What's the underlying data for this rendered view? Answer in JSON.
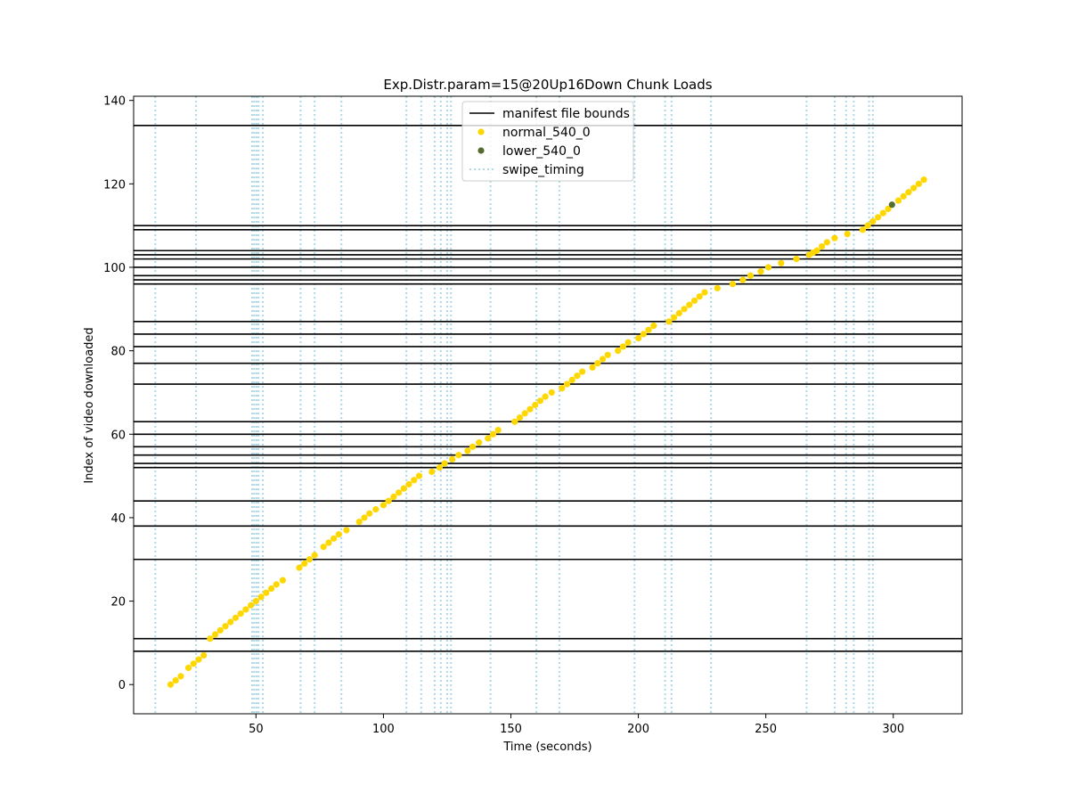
{
  "chart_data": {
    "type": "scatter",
    "title": "Exp.Distr.param=15@20Up16Down Chunk Loads",
    "xlabel": "Time (seconds)",
    "ylabel": "Index of video downloaded",
    "xlim": [
      2,
      327
    ],
    "ylim": [
      -7,
      141
    ],
    "x_ticks": [
      50,
      100,
      150,
      200,
      250,
      300
    ],
    "y_ticks": [
      0,
      20,
      40,
      60,
      80,
      100,
      120,
      140
    ],
    "grid": false,
    "legend_position": "upper center",
    "legend": [
      {
        "label": "manifest file bounds",
        "style": "line",
        "color": "#000000"
      },
      {
        "label": "normal_540_0",
        "style": "dot",
        "color": "#ffd700"
      },
      {
        "label": "lower_540_0",
        "style": "dot",
        "color": "#556b2f"
      },
      {
        "label": "swipe_timing",
        "style": "dotted-line",
        "color": "#add8e6"
      }
    ],
    "manifest_file_bounds": [
      8,
      11,
      30,
      38,
      44,
      52,
      53,
      55,
      57,
      60,
      63,
      72,
      77,
      81,
      84,
      87,
      96,
      97,
      98,
      100,
      102,
      103,
      104,
      109,
      110,
      134
    ],
    "swipe_timing": [
      10.5,
      26.5,
      48.5,
      49.3,
      50.2,
      51,
      52.7,
      67.5,
      73,
      83.5,
      109,
      114.8,
      120.1,
      122.5,
      125,
      126.5,
      142,
      160,
      169,
      198.5,
      210.5,
      213,
      228.5,
      266,
      277,
      281.5,
      284.5,
      290.5,
      292
    ],
    "series": [
      {
        "name": "normal_540_0",
        "color": "#ffd700",
        "points": [
          [
            16.5,
            0
          ],
          [
            18.5,
            1
          ],
          [
            20.5,
            2
          ],
          [
            23.5,
            4
          ],
          [
            25.5,
            5
          ],
          [
            27.5,
            6
          ],
          [
            29.5,
            7
          ],
          [
            32,
            11
          ],
          [
            34,
            12
          ],
          [
            36,
            13
          ],
          [
            38,
            14
          ],
          [
            40,
            15
          ],
          [
            42,
            16
          ],
          [
            44,
            17
          ],
          [
            46,
            18
          ],
          [
            48,
            19
          ],
          [
            50,
            20
          ],
          [
            52,
            21
          ],
          [
            54,
            22
          ],
          [
            56,
            23
          ],
          [
            58,
            24
          ],
          [
            60.5,
            25
          ],
          [
            67,
            28
          ],
          [
            69,
            29
          ],
          [
            71,
            30
          ],
          [
            73,
            31
          ],
          [
            76.5,
            33
          ],
          [
            78.5,
            34
          ],
          [
            80.5,
            35
          ],
          [
            82.5,
            36
          ],
          [
            85.5,
            37
          ],
          [
            90.5,
            39
          ],
          [
            92.5,
            40
          ],
          [
            94.5,
            41
          ],
          [
            97,
            42
          ],
          [
            100,
            43
          ],
          [
            102,
            44
          ],
          [
            104,
            45
          ],
          [
            106,
            46
          ],
          [
            108,
            47
          ],
          [
            110,
            48
          ],
          [
            112,
            49
          ],
          [
            114,
            50
          ],
          [
            119,
            51
          ],
          [
            122,
            52
          ],
          [
            124,
            53
          ],
          [
            127,
            54
          ],
          [
            129.5,
            55
          ],
          [
            133,
            56
          ],
          [
            135,
            57
          ],
          [
            137.5,
            58
          ],
          [
            141,
            59
          ],
          [
            143,
            60
          ],
          [
            145,
            61
          ],
          [
            151.5,
            63
          ],
          [
            153.5,
            64
          ],
          [
            155.5,
            65
          ],
          [
            157.5,
            66
          ],
          [
            159.5,
            67
          ],
          [
            161.5,
            68
          ],
          [
            163.5,
            69
          ],
          [
            166,
            70
          ],
          [
            170,
            71
          ],
          [
            172,
            72
          ],
          [
            174,
            73
          ],
          [
            176,
            74
          ],
          [
            178,
            75
          ],
          [
            182,
            76
          ],
          [
            184,
            77
          ],
          [
            186,
            78
          ],
          [
            188,
            79
          ],
          [
            192,
            80
          ],
          [
            194,
            81
          ],
          [
            196,
            82
          ],
          [
            200,
            83
          ],
          [
            202,
            84
          ],
          [
            204,
            85
          ],
          [
            206,
            86
          ],
          [
            212,
            87
          ],
          [
            214,
            88
          ],
          [
            216,
            89
          ],
          [
            218,
            90
          ],
          [
            220,
            91
          ],
          [
            222,
            92
          ],
          [
            224,
            93
          ],
          [
            226,
            94
          ],
          [
            231,
            95
          ],
          [
            237,
            96
          ],
          [
            241,
            97
          ],
          [
            244,
            98
          ],
          [
            248,
            99
          ],
          [
            251,
            100
          ],
          [
            256,
            101
          ],
          [
            262,
            102
          ],
          [
            267,
            103
          ],
          [
            268.5,
            103.5
          ],
          [
            270,
            104
          ],
          [
            272,
            105
          ],
          [
            274,
            106
          ],
          [
            277,
            107
          ],
          [
            282,
            108
          ],
          [
            288,
            109
          ],
          [
            290,
            110
          ],
          [
            292,
            111
          ],
          [
            294,
            112
          ],
          [
            296,
            113
          ],
          [
            298,
            114
          ],
          [
            302,
            116
          ],
          [
            304,
            117
          ],
          [
            306,
            118
          ],
          [
            308,
            119
          ],
          [
            310,
            120
          ],
          [
            312,
            121
          ]
        ]
      },
      {
        "name": "lower_540_0",
        "color": "#556b2f",
        "points": [
          [
            299.5,
            115
          ]
        ]
      }
    ]
  }
}
